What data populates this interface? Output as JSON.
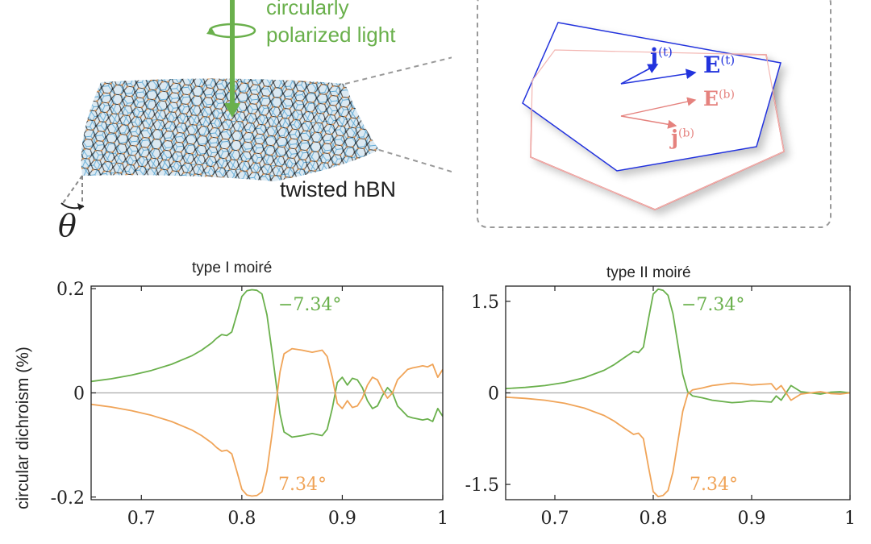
{
  "top_left": {
    "light_label_line1": "circularly",
    "light_label_line2": "polarized light",
    "material_label": "twisted hBN",
    "angle_symbol": "θ"
  },
  "inset": {
    "labels": {
      "j_top": "j",
      "j_top_sup": "(t)",
      "E_top": "E",
      "E_top_sup": "(t)",
      "E_bottom": "E",
      "E_bottom_sup": "(b)",
      "j_bottom": "j",
      "j_bottom_sup": "(b)"
    },
    "colors": {
      "top": "#2233dd",
      "bottom": "#e5827e",
      "bottom_hex_edge": "#d64545"
    }
  },
  "shared": {
    "ylabel": "circular dichroism (%)"
  },
  "chart_data": [
    {
      "type": "line",
      "title": "type I moiré",
      "xlim": [
        0.65,
        1.0
      ],
      "ylim": [
        -0.205,
        0.205
      ],
      "xticks": [
        0.7,
        0.8,
        0.9,
        1.0
      ],
      "xtick_labels": [
        "0.7",
        "0.8",
        "0.9",
        "1"
      ],
      "yticks": [
        -0.2,
        0,
        0.2
      ],
      "ytick_labels": [
        "-0.2",
        "0",
        "0.2"
      ],
      "zero_line": true,
      "series": [
        {
          "name": "−7.34°",
          "color": "#6ab04c",
          "x": [
            0.65,
            0.67,
            0.69,
            0.71,
            0.73,
            0.75,
            0.76,
            0.77,
            0.775,
            0.78,
            0.785,
            0.79,
            0.795,
            0.8,
            0.805,
            0.81,
            0.815,
            0.82,
            0.825,
            0.83,
            0.835,
            0.838,
            0.842,
            0.85,
            0.86,
            0.87,
            0.88,
            0.885,
            0.89,
            0.895,
            0.9,
            0.905,
            0.91,
            0.915,
            0.92,
            0.925,
            0.93,
            0.935,
            0.94,
            0.945,
            0.95,
            0.955,
            0.96,
            0.965,
            0.97,
            0.975,
            0.98,
            0.985,
            0.99,
            0.995,
            1.0
          ],
          "y": [
            0.022,
            0.027,
            0.034,
            0.043,
            0.055,
            0.071,
            0.082,
            0.096,
            0.105,
            0.112,
            0.11,
            0.117,
            0.15,
            0.185,
            0.196,
            0.198,
            0.197,
            0.19,
            0.15,
            0.08,
            0.005,
            -0.04,
            -0.075,
            -0.085,
            -0.082,
            -0.078,
            -0.082,
            -0.07,
            -0.03,
            0.02,
            0.03,
            0.015,
            0.028,
            0.025,
            0.01,
            -0.015,
            -0.03,
            -0.025,
            -0.005,
            0.01,
            0.0,
            -0.025,
            -0.035,
            -0.045,
            -0.048,
            -0.05,
            -0.052,
            -0.05,
            -0.055,
            -0.03,
            -0.045
          ]
        },
        {
          "name": "7.34°",
          "color": "#f0a458",
          "x": [
            0.65,
            0.67,
            0.69,
            0.71,
            0.73,
            0.75,
            0.76,
            0.77,
            0.775,
            0.78,
            0.785,
            0.79,
            0.795,
            0.8,
            0.805,
            0.81,
            0.815,
            0.82,
            0.825,
            0.83,
            0.835,
            0.838,
            0.842,
            0.85,
            0.86,
            0.87,
            0.88,
            0.885,
            0.89,
            0.895,
            0.9,
            0.905,
            0.91,
            0.915,
            0.92,
            0.925,
            0.93,
            0.935,
            0.94,
            0.945,
            0.95,
            0.955,
            0.96,
            0.965,
            0.97,
            0.975,
            0.98,
            0.985,
            0.99,
            0.995,
            1.0
          ],
          "y": [
            -0.022,
            -0.027,
            -0.034,
            -0.043,
            -0.055,
            -0.071,
            -0.082,
            -0.096,
            -0.105,
            -0.112,
            -0.11,
            -0.117,
            -0.15,
            -0.185,
            -0.196,
            -0.198,
            -0.197,
            -0.19,
            -0.15,
            -0.08,
            -0.005,
            0.04,
            0.075,
            0.085,
            0.082,
            0.078,
            0.082,
            0.07,
            0.03,
            -0.02,
            -0.03,
            -0.015,
            -0.028,
            -0.025,
            -0.01,
            0.015,
            0.03,
            0.025,
            0.005,
            -0.01,
            0.0,
            0.025,
            0.035,
            0.045,
            0.048,
            0.05,
            0.052,
            0.05,
            0.055,
            0.03,
            0.045
          ]
        }
      ]
    },
    {
      "type": "line",
      "title": "type II moiré",
      "xlim": [
        0.65,
        1.0
      ],
      "ylim": [
        -1.75,
        1.75
      ],
      "xticks": [
        0.7,
        0.8,
        0.9,
        1.0
      ],
      "xtick_labels": [
        "0.7",
        "0.8",
        "0.9",
        "1"
      ],
      "yticks": [
        -1.5,
        0,
        1.5
      ],
      "ytick_labels": [
        "-1.5",
        "0",
        "1.5"
      ],
      "zero_line": true,
      "series": [
        {
          "name": "−7.34°",
          "color": "#6ab04c",
          "x": [
            0.65,
            0.67,
            0.69,
            0.71,
            0.73,
            0.75,
            0.76,
            0.77,
            0.78,
            0.785,
            0.79,
            0.795,
            0.8,
            0.805,
            0.81,
            0.815,
            0.82,
            0.825,
            0.83,
            0.835,
            0.84,
            0.85,
            0.86,
            0.87,
            0.88,
            0.89,
            0.9,
            0.91,
            0.92,
            0.925,
            0.93,
            0.935,
            0.94,
            0.95,
            0.96,
            0.97,
            0.98,
            0.99,
            1.0
          ],
          "y": [
            0.07,
            0.09,
            0.12,
            0.17,
            0.25,
            0.37,
            0.46,
            0.57,
            0.68,
            0.66,
            0.75,
            1.2,
            1.62,
            1.7,
            1.68,
            1.6,
            1.3,
            0.8,
            0.3,
            0.02,
            -0.05,
            -0.08,
            -0.12,
            -0.14,
            -0.16,
            -0.15,
            -0.13,
            -0.14,
            -0.15,
            -0.05,
            -0.12,
            0.0,
            0.12,
            0.02,
            0.0,
            -0.02,
            0.01,
            0.02,
            0.0
          ]
        },
        {
          "name": "7.34°",
          "color": "#f0a458",
          "x": [
            0.65,
            0.67,
            0.69,
            0.71,
            0.73,
            0.75,
            0.76,
            0.77,
            0.78,
            0.785,
            0.79,
            0.795,
            0.8,
            0.805,
            0.81,
            0.815,
            0.82,
            0.825,
            0.83,
            0.835,
            0.84,
            0.85,
            0.86,
            0.87,
            0.88,
            0.89,
            0.9,
            0.91,
            0.92,
            0.925,
            0.93,
            0.935,
            0.94,
            0.95,
            0.96,
            0.97,
            0.98,
            0.99,
            1.0
          ],
          "y": [
            -0.07,
            -0.09,
            -0.12,
            -0.17,
            -0.25,
            -0.37,
            -0.46,
            -0.57,
            -0.68,
            -0.66,
            -0.75,
            -1.2,
            -1.62,
            -1.7,
            -1.68,
            -1.6,
            -1.3,
            -0.8,
            -0.3,
            -0.02,
            0.05,
            0.08,
            0.12,
            0.14,
            0.16,
            0.15,
            0.13,
            0.14,
            0.15,
            0.05,
            0.12,
            0.0,
            -0.12,
            -0.02,
            0.0,
            0.02,
            -0.01,
            -0.02,
            0.0
          ]
        }
      ]
    }
  ]
}
